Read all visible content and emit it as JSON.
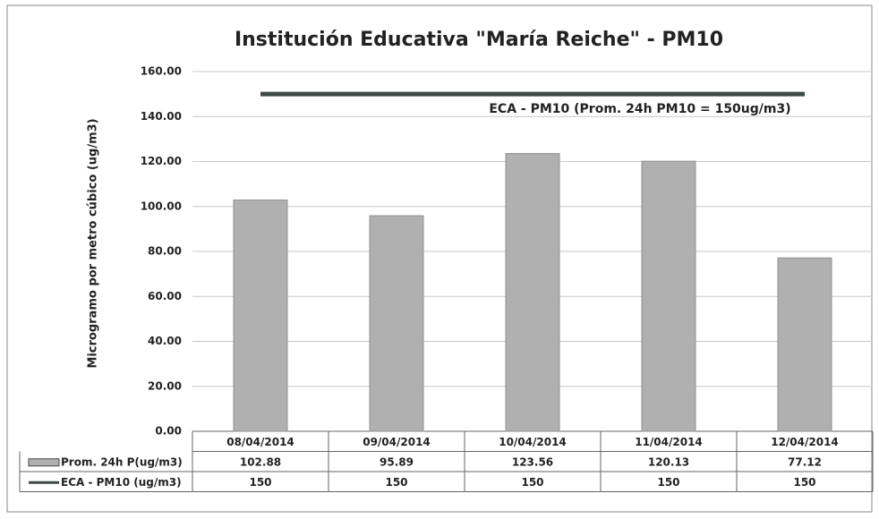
{
  "chart_data": {
    "type": "bar",
    "title": "Institución Educativa \"María Reiche\" - PM10",
    "y_label": "Microgramo por metro cúbico (ug/m3)",
    "annotation": "ECA - PM10 (Prom. 24h PM10 = 150ug/m3)",
    "categories": [
      "08/04/2014",
      "09/04/2014",
      "10/04/2014",
      "11/04/2014",
      "12/04/2014"
    ],
    "series": [
      {
        "name": "Prom. 24h P(ug/m3)",
        "type": "bar",
        "color": "#b0b0b0",
        "values": [
          102.88,
          95.89,
          123.56,
          120.13,
          77.12
        ]
      },
      {
        "name": "ECA - PM10 (ug/m3)",
        "type": "line",
        "color": "#3f4a45",
        "values": [
          150,
          150,
          150,
          150,
          150
        ]
      }
    ],
    "ylim": [
      0,
      160
    ],
    "yticks": [
      {
        "value": 0,
        "label": "0.00"
      },
      {
        "value": 20,
        "label": "20.00"
      },
      {
        "value": 40,
        "label": "40.00"
      },
      {
        "value": 60,
        "label": "60.00"
      },
      {
        "value": 80,
        "label": "80.00"
      },
      {
        "value": 100,
        "label": "100.00"
      },
      {
        "value": 120,
        "label": "120.00"
      },
      {
        "value": 140,
        "label": "140.00"
      },
      {
        "value": 160,
        "label": "160.00"
      }
    ],
    "grid": true
  }
}
